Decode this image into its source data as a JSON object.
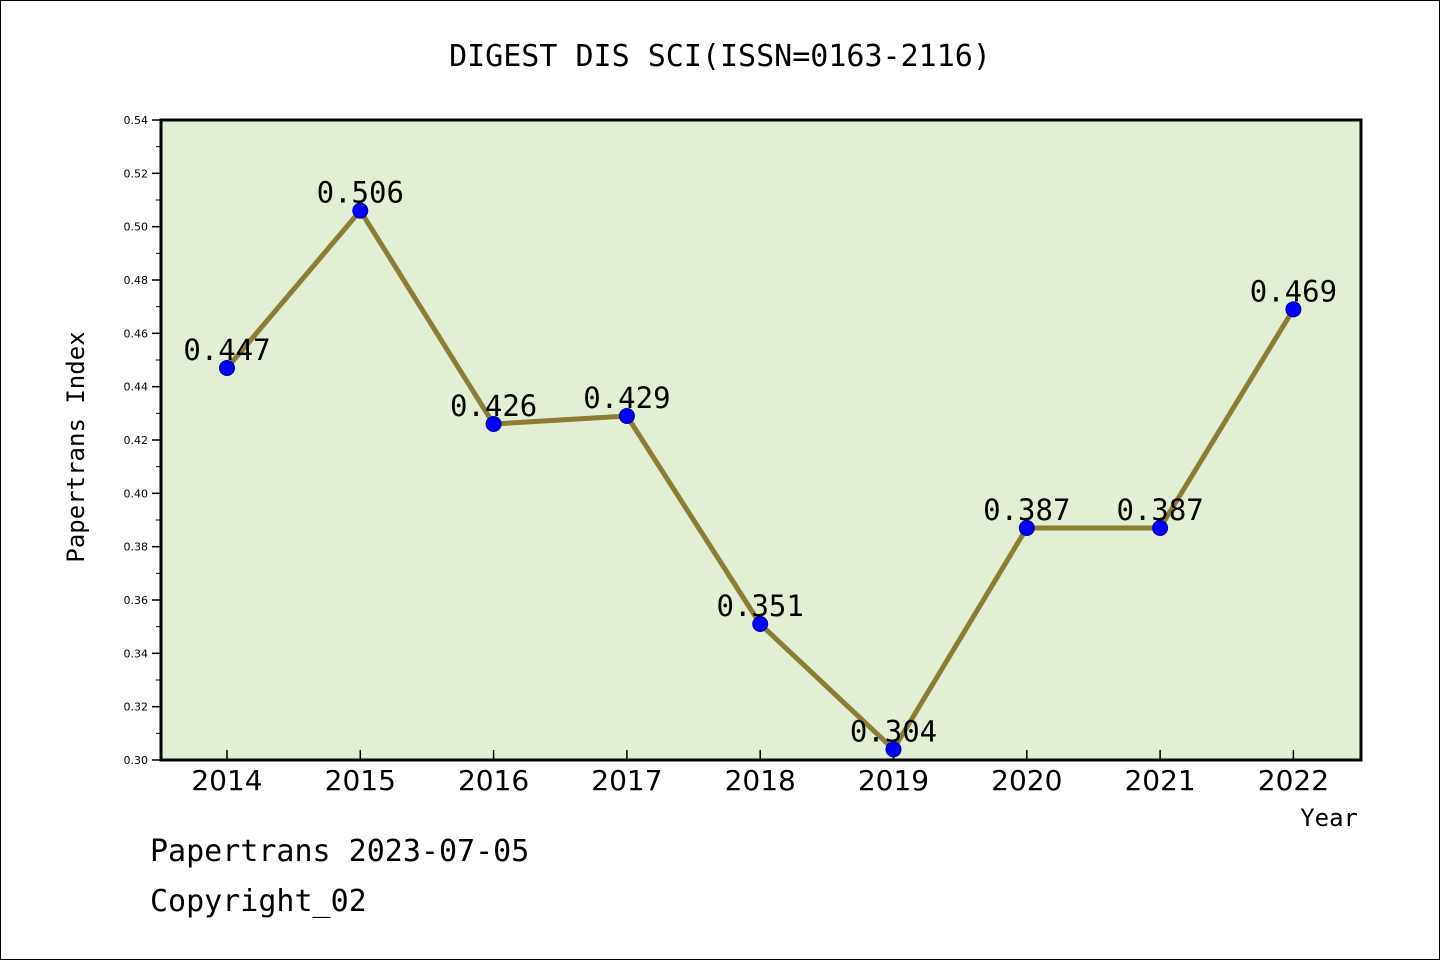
{
  "footer": {
    "line1": "Papertrans 2023-07-05",
    "line2": "Copyright_02"
  },
  "chart_data": {
    "type": "line",
    "title": "DIGEST DIS SCI(ISSN=0163-2116)",
    "xlabel": "Year",
    "ylabel": "Papertrans Index",
    "categories": [
      "2014",
      "2015",
      "2016",
      "2017",
      "2018",
      "2019",
      "2020",
      "2021",
      "2022"
    ],
    "values": [
      0.447,
      0.506,
      0.426,
      0.429,
      0.351,
      0.304,
      0.387,
      0.387,
      0.469
    ],
    "data_labels": [
      "0.447",
      "0.506",
      "0.426",
      "0.429",
      "0.351",
      "0.304",
      "0.387",
      "0.387",
      "0.469"
    ],
    "ylim": [
      0.3,
      0.54
    ],
    "yticks": [
      "0.30",
      "0.32",
      "0.34",
      "0.36",
      "0.38",
      "0.40",
      "0.42",
      "0.44",
      "0.46",
      "0.48",
      "0.50",
      "0.52",
      "0.54"
    ],
    "grid": false,
    "colors": {
      "plot_background": "#e2efd4",
      "line": "#8b7d35",
      "marker": "#0000ff",
      "marker_edge": "#00008b",
      "axis": "#000000"
    }
  }
}
